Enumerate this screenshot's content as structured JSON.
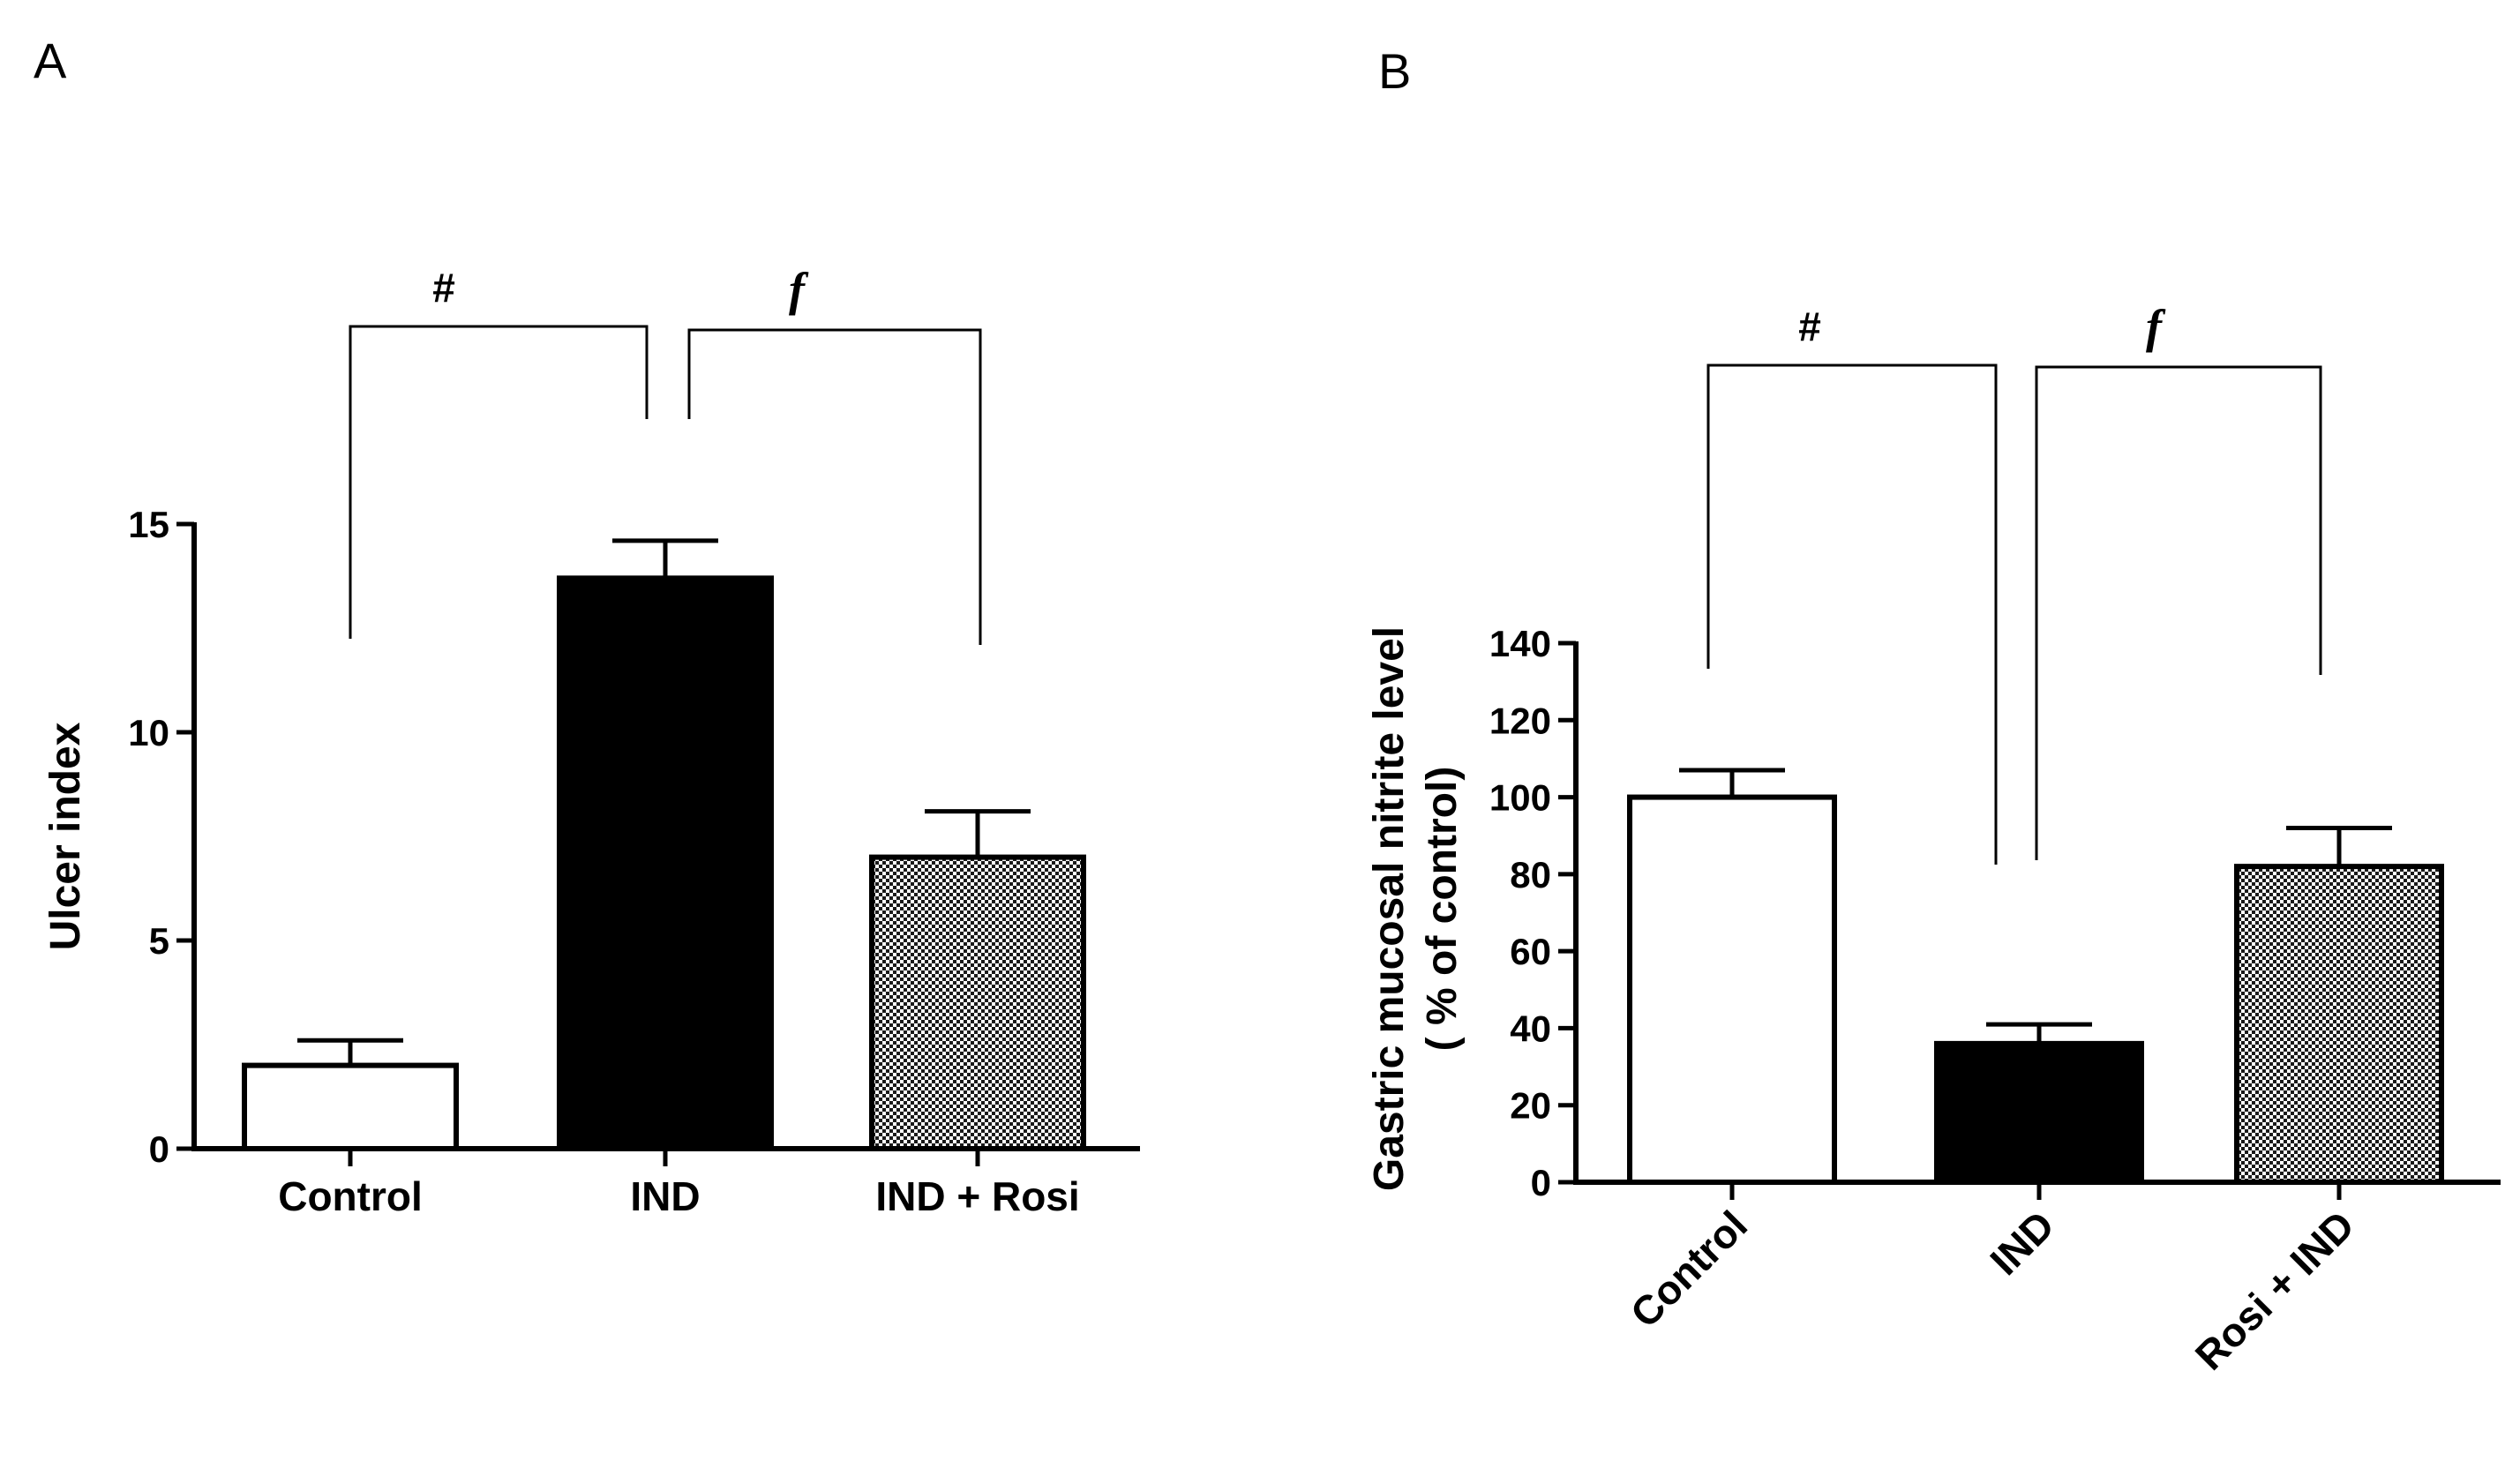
{
  "panels": [
    {
      "id": "A",
      "label": "A"
    },
    {
      "id": "B",
      "label": "B"
    }
  ],
  "chart_data": [
    {
      "panel": "A",
      "type": "bar",
      "categories": [
        "Control",
        "IND",
        "IND + Rosi"
      ],
      "values": [
        2.0,
        13.7,
        7.0
      ],
      "errors": [
        0.6,
        0.9,
        1.1
      ],
      "bar_styles": [
        "white",
        "black",
        "hatched"
      ],
      "ylabel": "Ulcer index",
      "ylim": [
        0,
        15
      ],
      "yticks": [
        "0",
        "5",
        "10",
        "15"
      ],
      "x_label_rotation": 0,
      "significance": [
        {
          "from": 0,
          "to": 1,
          "symbol": "#"
        },
        {
          "from": 1,
          "to": 2,
          "symbol": "f"
        }
      ]
    },
    {
      "panel": "B",
      "type": "bar",
      "categories": [
        "Control",
        "IND",
        "Rosi + IND"
      ],
      "values": [
        100,
        36,
        82
      ],
      "errors": [
        7,
        5,
        10
      ],
      "bar_styles": [
        "white",
        "black",
        "hatched"
      ],
      "ylabel_lines": [
        "Gastric mucosal nitrite level",
        "( % of control)"
      ],
      "ylim": [
        0,
        140
      ],
      "yticks": [
        "0",
        "20",
        "40",
        "60",
        "80",
        "100",
        "120",
        "140"
      ],
      "x_label_rotation": -45,
      "significance": [
        {
          "from": 0,
          "to": 1,
          "symbol": "#"
        },
        {
          "from": 1,
          "to": 2,
          "symbol": "f"
        }
      ]
    }
  ]
}
